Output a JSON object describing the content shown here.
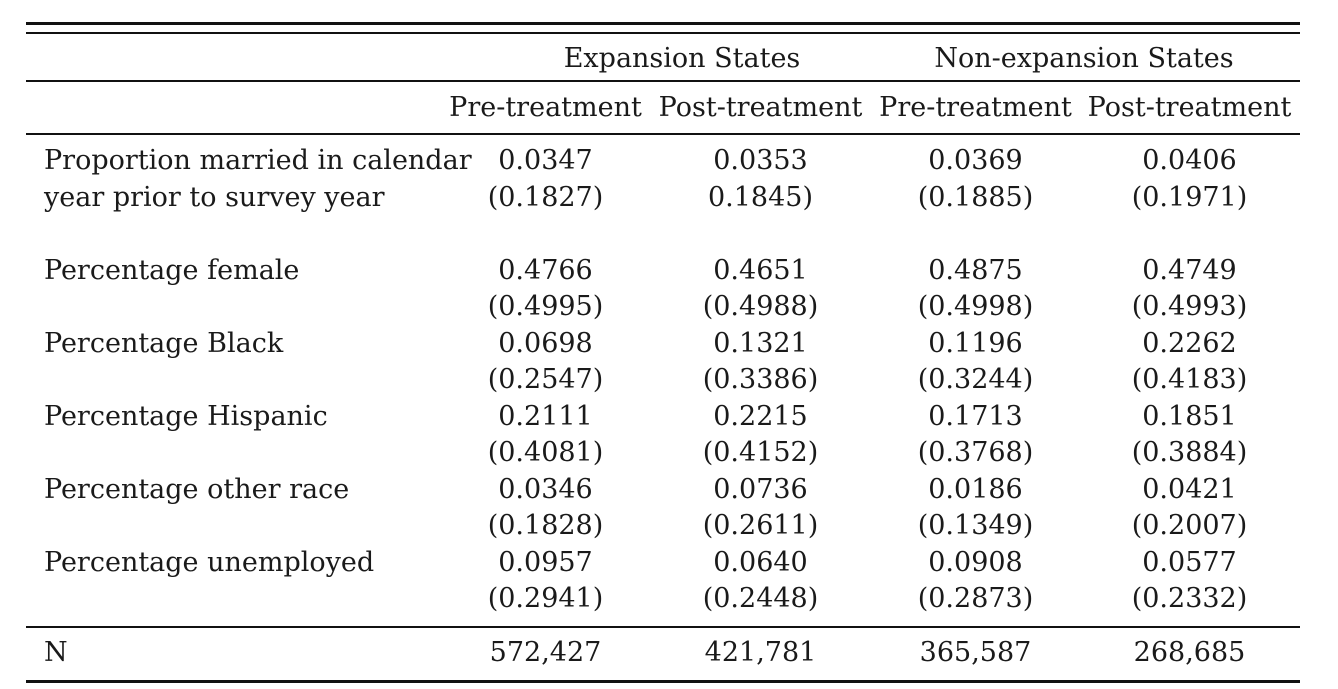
{
  "table": {
    "groups": [
      "Expansion States",
      "Non-expansion States"
    ],
    "columns": [
      "Pre-treatment",
      "Post-treatment",
      "Pre-treatment",
      "Post-treatment"
    ],
    "rows": [
      {
        "label_lines": [
          "Proportion married in calendar",
          "year prior to survey year"
        ],
        "means": [
          "0.0347",
          "0.0353",
          "0.0369",
          "0.0406"
        ],
        "sds": [
          "(0.1827)",
          "0.1845)",
          "(0.1885)",
          "(0.1971)"
        ]
      },
      {
        "label_lines": [
          "Percentage female"
        ],
        "means": [
          "0.4766",
          "0.4651",
          "0.4875",
          "0.4749"
        ],
        "sds": [
          "(0.4995)",
          "(0.4988)",
          "(0.4998)",
          "(0.4993)"
        ]
      },
      {
        "label_lines": [
          "Percentage Black"
        ],
        "means": [
          "0.0698",
          "0.1321",
          "0.1196",
          "0.2262"
        ],
        "sds": [
          "(0.2547)",
          "(0.3386)",
          "(0.3244)",
          "(0.4183)"
        ]
      },
      {
        "label_lines": [
          "Percentage Hispanic"
        ],
        "means": [
          "0.2111",
          "0.2215",
          "0.1713",
          "0.1851"
        ],
        "sds": [
          "(0.4081)",
          "(0.4152)",
          "(0.3768)",
          "(0.3884)"
        ]
      },
      {
        "label_lines": [
          "Percentage other race"
        ],
        "means": [
          "0.0346",
          "0.0736",
          "0.0186",
          "0.0421"
        ],
        "sds": [
          "(0.1828)",
          "(0.2611)",
          "(0.1349)",
          "(0.2007)"
        ]
      },
      {
        "label_lines": [
          "Percentage unemployed"
        ],
        "means": [
          "0.0957",
          "0.0640",
          "0.0908",
          "0.0577"
        ],
        "sds": [
          "(0.2941)",
          "(0.2448)",
          "(0.2873)",
          "(0.2332)"
        ]
      }
    ],
    "n_row": {
      "label": "N",
      "values": [
        "572,427",
        "421,781",
        "365,587",
        "268,685"
      ]
    }
  }
}
